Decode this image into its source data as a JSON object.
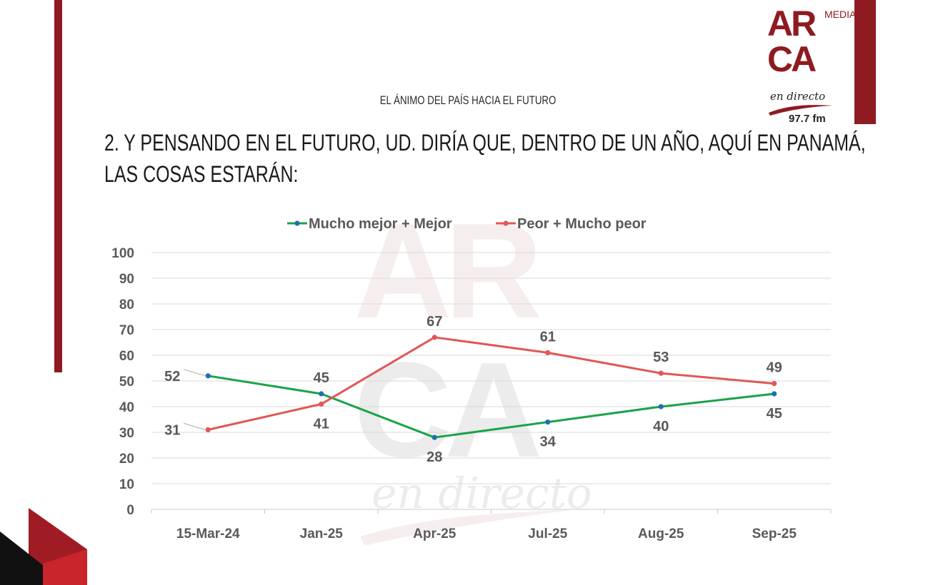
{
  "header": {
    "subtitle": "EL ÁNIMO DEL PAÍS HACIA EL FUTURO",
    "question_line1": "2. Y PENSANDO EN EL FUTURO, UD. DIRÍA QUE, DENTRO DE UN AÑO, AQUÍ EN PANAMÁ,",
    "question_line2": "LAS COSAS ESTARÁN:"
  },
  "logo": {
    "letters_row1": "AR",
    "letters_row2": "CA",
    "media": "MEDIA",
    "tagline": "en directo",
    "frequency": "97.7 fm"
  },
  "colors": {
    "brand": "#8e1b21",
    "series_green": "#1aa34a",
    "series_red": "#e05757",
    "marker_blue": "#1f6fb2",
    "axis_text": "#595959"
  },
  "chart_data": {
    "type": "line",
    "categories": [
      "15-Mar-24",
      "Jan-25",
      "Apr-25",
      "Jul-25",
      "Aug-25",
      "Sep-25"
    ],
    "series": [
      {
        "name": "Mucho mejor + Mejor",
        "values": [
          52,
          45,
          28,
          34,
          40,
          45
        ]
      },
      {
        "name": "Peor + Mucho peor",
        "values": [
          31,
          41,
          67,
          61,
          53,
          49
        ]
      }
    ],
    "yticks": [
      "0",
      "10",
      "20",
      "30",
      "40",
      "50",
      "60",
      "70",
      "80",
      "90",
      "100"
    ],
    "ylim": [
      0,
      100
    ],
    "grid": true,
    "legend": "top-center",
    "title": "",
    "xlabel": "",
    "ylabel": ""
  }
}
